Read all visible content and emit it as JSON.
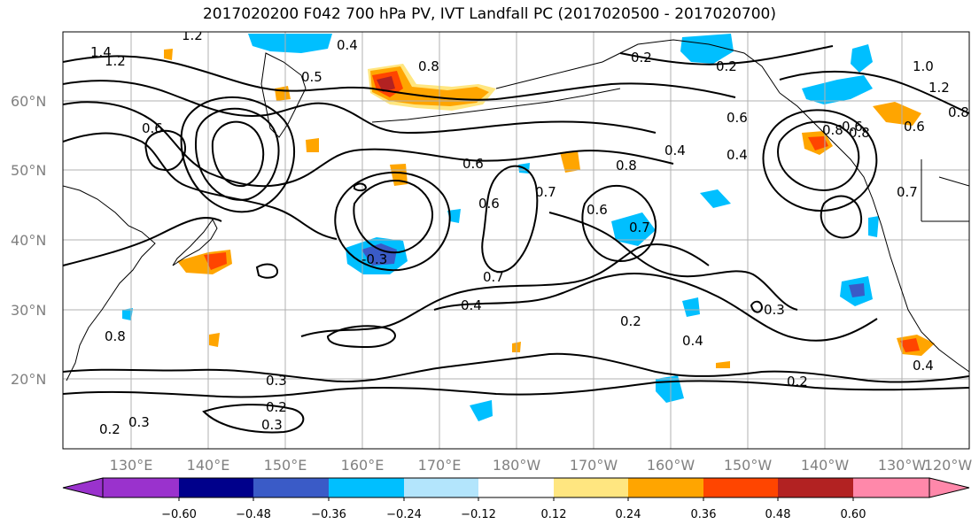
{
  "title": "2017020200 F042 700 hPa PV, IVT Landfall PC (2017020500 - 2017020700)",
  "map": {
    "lat_labels": [
      "60°N",
      "50°N",
      "40°N",
      "30°N",
      "20°N"
    ],
    "lon_labels": [
      "130°E",
      "140°E",
      "150°E",
      "160°E",
      "170°E",
      "180°W",
      "170°W",
      "160°W",
      "150°W",
      "140°W",
      "130°W",
      "120°W"
    ],
    "contour_labels": [
      "1.4",
      "1.2",
      "1.2",
      "0.4",
      "0.5",
      "0.8",
      "0.2",
      "0.2",
      "0.6",
      "0.6",
      "0.6",
      "0.4",
      "0.8",
      "0.7",
      "0.6",
      "0.7",
      "0.6",
      "0.8",
      "0.4",
      "0.6",
      "-0.3",
      "0.7",
      "0.4",
      "0.2",
      "0.4",
      "0.3",
      "0.3",
      "0.2",
      "0.2",
      "0.3",
      "0.8",
      "0.3",
      "0.2",
      "0.8",
      "1.0",
      "0.7",
      "0.4",
      "1.2",
      "0.8",
      "0.6"
    ],
    "colors": {
      "coastline": "#000000",
      "grid": "#b0b0b0",
      "contour": "#000000"
    }
  },
  "colorbar": {
    "ticks": [
      "−0.60",
      "−0.48",
      "−0.36",
      "−0.24",
      "−0.12",
      "0.12",
      "0.24",
      "0.36",
      "0.48",
      "0.60"
    ],
    "colors": [
      "#9a32cd",
      "#00008b",
      "#3a5bc7",
      "#00bfff",
      "#b3e5fc",
      "#ffffff",
      "#ffe680",
      "#ffa500",
      "#ff4500",
      "#b22222",
      "#ff88aa"
    ]
  }
}
